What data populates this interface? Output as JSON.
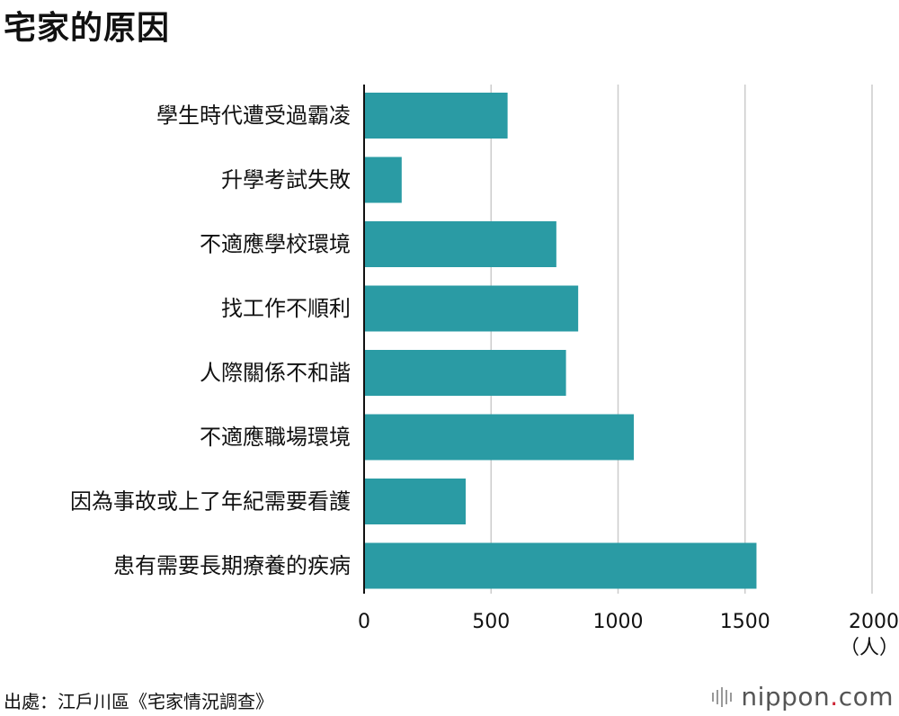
{
  "title": "宅家的原因",
  "source": "出處：江戶川區《宅家情況調查》",
  "logo": {
    "name": "nippon",
    "dot": ".",
    "tld": "com"
  },
  "chart_data": {
    "type": "bar",
    "orientation": "horizontal",
    "title": "宅家的原因",
    "categories": [
      "學生時代遭受過霸凌",
      "升學考試失敗",
      "不適應學校環境",
      "找工作不順利",
      "人際關係不和諧",
      "不適應職場環境",
      "因為事故或上了年紀需要看護",
      "患有需要長期療養的疾病"
    ],
    "values": [
      565,
      148,
      757,
      843,
      795,
      1062,
      400,
      1545
    ],
    "xlim": [
      0,
      2000
    ],
    "xticks": [
      0,
      500,
      1000,
      1500,
      2000
    ],
    "tick_labels": [
      "0",
      "500",
      "1000",
      "1500",
      "2000"
    ],
    "unit": "（人）",
    "grid": true,
    "bar_color": "#2a9ba4"
  }
}
